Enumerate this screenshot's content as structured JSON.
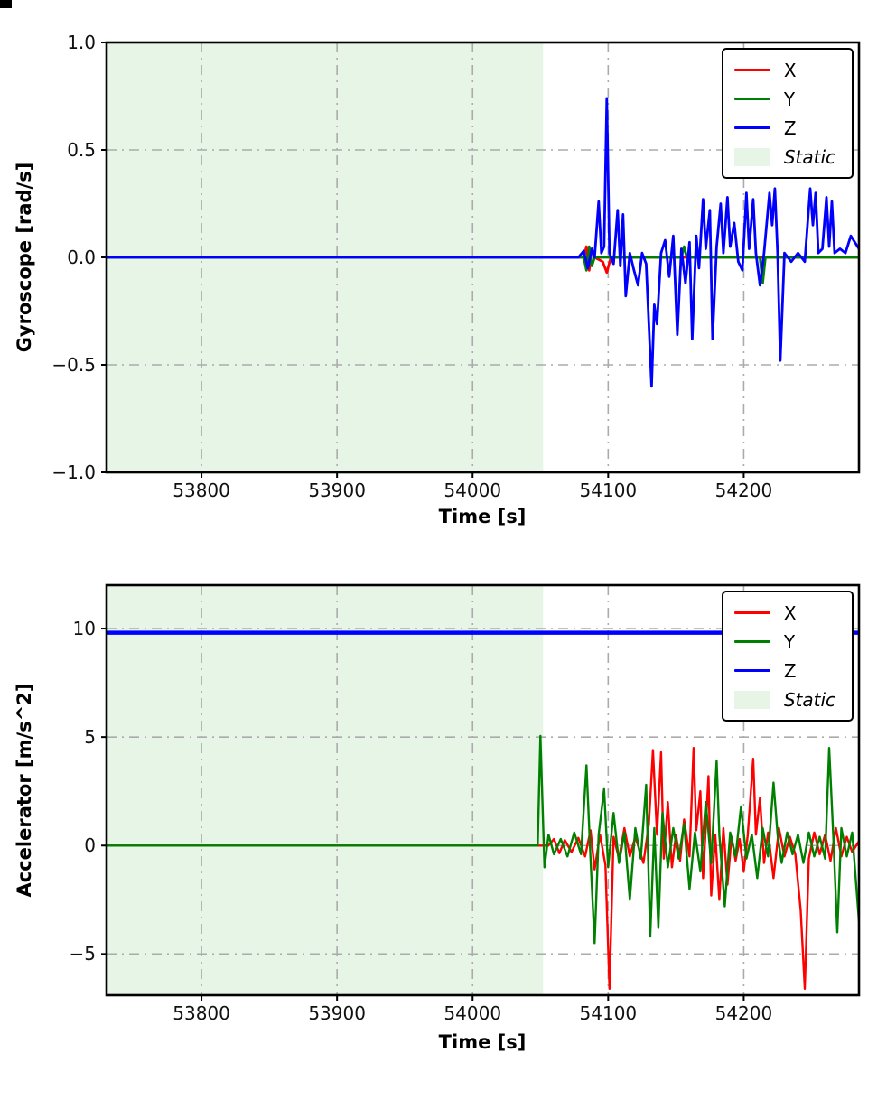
{
  "figure": {
    "background": "#ffffff",
    "spine_color": "#000000",
    "tick_color": "#111111"
  },
  "chart_data": [
    {
      "type": "line",
      "title": "",
      "xlabel": "Time [s]",
      "ylabel": "Gyroscope [rad/s]",
      "xlim": [
        53730,
        54285
      ],
      "ylim": [
        -1.0,
        1.0
      ],
      "grid": {
        "on": true,
        "style": "dash-dot",
        "color": "#ababab"
      },
      "legend": {
        "position": "upper right"
      },
      "xticks": {
        "values": [
          53800,
          53900,
          54000,
          54100,
          54200
        ],
        "labels": [
          "53800",
          "53900",
          "54000",
          "54100",
          "54200"
        ]
      },
      "yticks": {
        "values": [
          -1.0,
          -0.5,
          0.0,
          0.5,
          1.0
        ],
        "labels": [
          "−1.0",
          "−0.5",
          "0.0",
          "0.5",
          "1.0"
        ]
      },
      "static_region": {
        "label": "Static",
        "x0": 53730,
        "x1": 54052,
        "color": "#e7f5e7"
      },
      "series": [
        {
          "name": "X",
          "color": "#ff0000",
          "width": 2.8,
          "points": [
            [
              53730,
              0
            ],
            [
              54082,
              0
            ],
            [
              54084,
              0.05
            ],
            [
              54086,
              -0.06
            ],
            [
              54088,
              0.04
            ],
            [
              54090,
              0
            ],
            [
              54096,
              -0.02
            ],
            [
              54099,
              -0.07
            ],
            [
              54102,
              0
            ],
            [
              54285,
              0
            ]
          ]
        },
        {
          "name": "Y",
          "color": "#008000",
          "width": 2.8,
          "points": [
            [
              53730,
              0
            ],
            [
              54082,
              0
            ],
            [
              54084,
              -0.06
            ],
            [
              54086,
              0.05
            ],
            [
              54088,
              -0.04
            ],
            [
              54090,
              0
            ],
            [
              54154,
              0
            ],
            [
              54156,
              0.05
            ],
            [
              54158,
              0
            ],
            [
              54212,
              0
            ],
            [
              54214,
              -0.12
            ],
            [
              54216,
              0
            ],
            [
              54285,
              0
            ]
          ]
        },
        {
          "name": "Z",
          "color": "#0000ff",
          "width": 2.8,
          "points": [
            [
              53730,
              0
            ],
            [
              54078,
              0
            ],
            [
              54082,
              0.03
            ],
            [
              54085,
              -0.05
            ],
            [
              54088,
              0.04
            ],
            [
              54090,
              0
            ],
            [
              54093,
              0.26
            ],
            [
              54095,
              0.02
            ],
            [
              54097,
              0.05
            ],
            [
              54099,
              0.74
            ],
            [
              54101,
              0.02
            ],
            [
              54104,
              -0.03
            ],
            [
              54107,
              0.22
            ],
            [
              54109,
              -0.04
            ],
            [
              54111,
              0.2
            ],
            [
              54113,
              -0.18
            ],
            [
              54116,
              0.02
            ],
            [
              54119,
              -0.06
            ],
            [
              54122,
              -0.13
            ],
            [
              54125,
              0.02
            ],
            [
              54128,
              -0.03
            ],
            [
              54132,
              -0.6
            ],
            [
              54134,
              -0.22
            ],
            [
              54136,
              -0.31
            ],
            [
              54139,
              0.02
            ],
            [
              54142,
              0.08
            ],
            [
              54145,
              -0.09
            ],
            [
              54148,
              0.1
            ],
            [
              54151,
              -0.36
            ],
            [
              54154,
              0.04
            ],
            [
              54157,
              -0.12
            ],
            [
              54160,
              0.07
            ],
            [
              54162,
              -0.38
            ],
            [
              54165,
              0.1
            ],
            [
              54167,
              -0.05
            ],
            [
              54170,
              0.27
            ],
            [
              54172,
              0.04
            ],
            [
              54175,
              0.22
            ],
            [
              54177,
              -0.38
            ],
            [
              54180,
              0.05
            ],
            [
              54183,
              0.25
            ],
            [
              54185,
              0.02
            ],
            [
              54188,
              0.28
            ],
            [
              54190,
              0.05
            ],
            [
              54193,
              0.16
            ],
            [
              54196,
              -0.02
            ],
            [
              54199,
              -0.06
            ],
            [
              54202,
              0.3
            ],
            [
              54204,
              0.04
            ],
            [
              54207,
              0.27
            ],
            [
              54209,
              0.02
            ],
            [
              54212,
              -0.13
            ],
            [
              54215,
              0.02
            ],
            [
              54219,
              0.3
            ],
            [
              54221,
              0.15
            ],
            [
              54223,
              0.32
            ],
            [
              54225,
              0.02
            ],
            [
              54227,
              -0.48
            ],
            [
              54230,
              0.02
            ],
            [
              54235,
              -0.02
            ],
            [
              54240,
              0.02
            ],
            [
              54245,
              -0.02
            ],
            [
              54249,
              0.32
            ],
            [
              54251,
              0.15
            ],
            [
              54253,
              0.3
            ],
            [
              54255,
              0.02
            ],
            [
              54258,
              0.04
            ],
            [
              54261,
              0.28
            ],
            [
              54263,
              0.05
            ],
            [
              54265,
              0.26
            ],
            [
              54267,
              0.02
            ],
            [
              54271,
              0.04
            ],
            [
              54275,
              0.02
            ],
            [
              54279,
              0.1
            ],
            [
              54285,
              0.04
            ]
          ]
        }
      ]
    },
    {
      "type": "line",
      "title": "",
      "xlabel": "Time [s]",
      "ylabel": "Accelerator [m/s^2]",
      "xlim": [
        53730,
        54285
      ],
      "ylim": [
        -6.9,
        12.0
      ],
      "grid": {
        "on": true,
        "style": "dash-dot",
        "color": "#ababab"
      },
      "legend": {
        "position": "upper right"
      },
      "xticks": {
        "values": [
          53800,
          53900,
          54000,
          54100,
          54200
        ],
        "labels": [
          "53800",
          "53900",
          "54000",
          "54100",
          "54200"
        ]
      },
      "yticks": {
        "values": [
          -5,
          0,
          5,
          10
        ],
        "labels": [
          "−5",
          "0",
          "5",
          "10"
        ]
      },
      "static_region": {
        "label": "Static",
        "x0": 53730,
        "x1": 54052,
        "color": "#e7f5e7"
      },
      "series": [
        {
          "name": "X",
          "color": "#ff0000",
          "width": 2.4,
          "points": [
            [
              53730,
              0
            ],
            [
              54056,
              0
            ],
            [
              54060,
              0.3
            ],
            [
              54064,
              -0.35
            ],
            [
              54068,
              0.25
            ],
            [
              54073,
              -0.3
            ],
            [
              54078,
              0.35
            ],
            [
              54083,
              -0.5
            ],
            [
              54087,
              0.7
            ],
            [
              54090,
              -1.1
            ],
            [
              54094,
              0.5
            ],
            [
              54098,
              -0.9
            ],
            [
              54101,
              -6.6
            ],
            [
              54104,
              0.4
            ],
            [
              54108,
              -0.6
            ],
            [
              54112,
              0.8
            ],
            [
              54116,
              -0.5
            ],
            [
              54120,
              0.4
            ],
            [
              54126,
              -0.8
            ],
            [
              54130,
              1.0
            ],
            [
              54133,
              4.4
            ],
            [
              54136,
              0.5
            ],
            [
              54139,
              4.3
            ],
            [
              54141,
              -0.6
            ],
            [
              54144,
              2.0
            ],
            [
              54147,
              -1.0
            ],
            [
              54150,
              0.5
            ],
            [
              54153,
              -0.7
            ],
            [
              54156,
              1.2
            ],
            [
              54160,
              -0.5
            ],
            [
              54163,
              4.5
            ],
            [
              54165,
              0.7
            ],
            [
              54168,
              2.5
            ],
            [
              54170,
              -1.5
            ],
            [
              54174,
              3.2
            ],
            [
              54176,
              -2.3
            ],
            [
              54179,
              0.5
            ],
            [
              54182,
              -2.5
            ],
            [
              54185,
              0.8
            ],
            [
              54188,
              -1.8
            ],
            [
              54191,
              0.4
            ],
            [
              54194,
              -0.7
            ],
            [
              54197,
              0.3
            ],
            [
              54200,
              -1.2
            ],
            [
              54203,
              0.5
            ],
            [
              54207,
              4.0
            ],
            [
              54209,
              0.5
            ],
            [
              54212,
              2.2
            ],
            [
              54215,
              -0.8
            ],
            [
              54218,
              0.6
            ],
            [
              54222,
              -1.5
            ],
            [
              54226,
              0.8
            ],
            [
              54230,
              -0.5
            ],
            [
              54234,
              0.4
            ],
            [
              54238,
              -0.4
            ],
            [
              54242,
              -3.0
            ],
            [
              54245,
              -6.6
            ],
            [
              54248,
              -0.6
            ],
            [
              54252,
              0.6
            ],
            [
              54256,
              -0.4
            ],
            [
              54260,
              0.5
            ],
            [
              54264,
              -0.7
            ],
            [
              54268,
              0.8
            ],
            [
              54272,
              -0.5
            ],
            [
              54276,
              0.4
            ],
            [
              54280,
              -0.3
            ],
            [
              54285,
              0.2
            ]
          ]
        },
        {
          "name": "Y",
          "color": "#008000",
          "width": 2.4,
          "points": [
            [
              53730,
              0
            ],
            [
              54048,
              0
            ],
            [
              54050,
              5.05
            ],
            [
              54053,
              -1.0
            ],
            [
              54056,
              0.5
            ],
            [
              54060,
              -0.4
            ],
            [
              54065,
              0.3
            ],
            [
              54070,
              -0.5
            ],
            [
              54075,
              0.6
            ],
            [
              54080,
              -0.4
            ],
            [
              54084,
              3.7
            ],
            [
              54087,
              -0.6
            ],
            [
              54090,
              -4.5
            ],
            [
              54093,
              0.5
            ],
            [
              54097,
              2.6
            ],
            [
              54100,
              -1.0
            ],
            [
              54104,
              1.5
            ],
            [
              54108,
              -0.8
            ],
            [
              54112,
              0.6
            ],
            [
              54116,
              -2.5
            ],
            [
              54120,
              0.8
            ],
            [
              54124,
              -0.6
            ],
            [
              54128,
              2.8
            ],
            [
              54131,
              -4.2
            ],
            [
              54134,
              0.8
            ],
            [
              54137,
              -3.8
            ],
            [
              54140,
              1.5
            ],
            [
              54144,
              -1.0
            ],
            [
              54148,
              0.8
            ],
            [
              54152,
              -0.6
            ],
            [
              54156,
              1.0
            ],
            [
              54160,
              -2.0
            ],
            [
              54164,
              0.6
            ],
            [
              54168,
              -1.2
            ],
            [
              54172,
              2.0
            ],
            [
              54176,
              -0.8
            ],
            [
              54180,
              3.9
            ],
            [
              54182,
              0.5
            ],
            [
              54186,
              -2.8
            ],
            [
              54190,
              0.6
            ],
            [
              54194,
              -0.5
            ],
            [
              54198,
              1.8
            ],
            [
              54202,
              -0.6
            ],
            [
              54206,
              0.5
            ],
            [
              54210,
              -1.5
            ],
            [
              54214,
              0.8
            ],
            [
              54218,
              -0.5
            ],
            [
              54222,
              2.9
            ],
            [
              54225,
              0.5
            ],
            [
              54228,
              -0.8
            ],
            [
              54232,
              0.6
            ],
            [
              54236,
              -0.4
            ],
            [
              54240,
              0.5
            ],
            [
              54244,
              -0.8
            ],
            [
              54248,
              0.6
            ],
            [
              54252,
              -0.5
            ],
            [
              54256,
              0.4
            ],
            [
              54260,
              -0.6
            ],
            [
              54263,
              4.5
            ],
            [
              54266,
              0.5
            ],
            [
              54269,
              -4.0
            ],
            [
              54272,
              0.8
            ],
            [
              54276,
              -0.5
            ],
            [
              54280,
              0.6
            ],
            [
              54285,
              -3.5
            ]
          ]
        },
        {
          "name": "Z",
          "color": "#0000ff",
          "width": 4.5,
          "points": [
            [
              53730,
              9.81
            ],
            [
              54285,
              9.81
            ]
          ]
        }
      ]
    }
  ]
}
